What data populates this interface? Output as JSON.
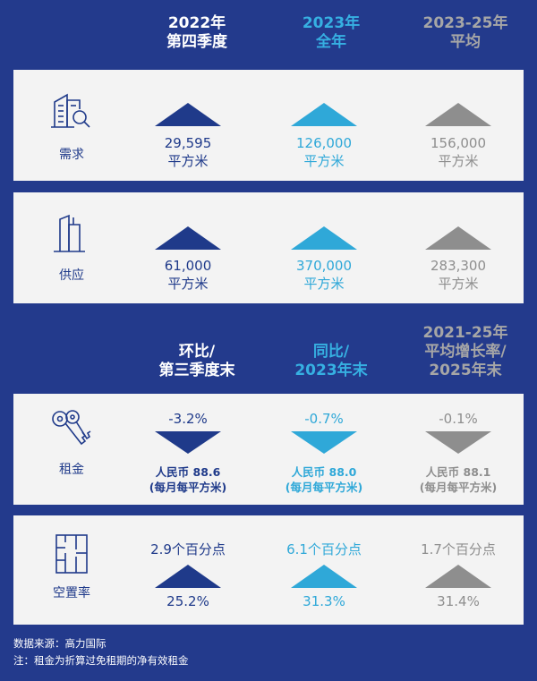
{
  "headers_top": {
    "col1": [
      "2022年",
      "第四季度"
    ],
    "col2": [
      "2023年",
      "全年"
    ],
    "col3": [
      "2023-25年",
      "平均"
    ]
  },
  "demand": {
    "label": "需求",
    "col1": [
      "29,595",
      "平方米"
    ],
    "col2": [
      "126,000",
      "平方米"
    ],
    "col3": [
      "156,000",
      "平方米"
    ]
  },
  "supply": {
    "label": "供应",
    "col1": [
      "61,000",
      "平方米"
    ],
    "col2": [
      "370,000",
      "平方米"
    ],
    "col3": [
      "283,300",
      "平方米"
    ]
  },
  "headers_bottom": {
    "col1": [
      "环比/",
      "第三季度末"
    ],
    "col2": [
      "同比/",
      "2023年末"
    ],
    "col3": [
      "2021-25年",
      "平均增长率/",
      "2025年末"
    ]
  },
  "rent": {
    "label": "租金",
    "col1": {
      "pct": "-3.2%",
      "value": "人民币 88.6",
      "unit": "(每月每平方米)"
    },
    "col2": {
      "pct": "-0.7%",
      "value": "人民币 88.0",
      "unit": "(每月每平方米)"
    },
    "col3": {
      "pct": "-0.1%",
      "value": "人民币 88.1",
      "unit": "(每月每平方米)"
    }
  },
  "vacancy": {
    "label": "空置率",
    "col1": {
      "change": "2.9个百分点",
      "value": "25.2%"
    },
    "col2": {
      "change": "6.1个百分点",
      "value": "31.3%"
    },
    "col3": {
      "change": "1.7个百分点",
      "value": "31.4%"
    }
  },
  "footnotes": {
    "source": "数据来源：高力国际",
    "note": "注：租金为折算过免租期的净有效租金"
  },
  "colors": {
    "background": "#233a8c",
    "dark": "#1f3a8a",
    "light": "#2fa8d8",
    "grey": "#8e8e8e"
  }
}
